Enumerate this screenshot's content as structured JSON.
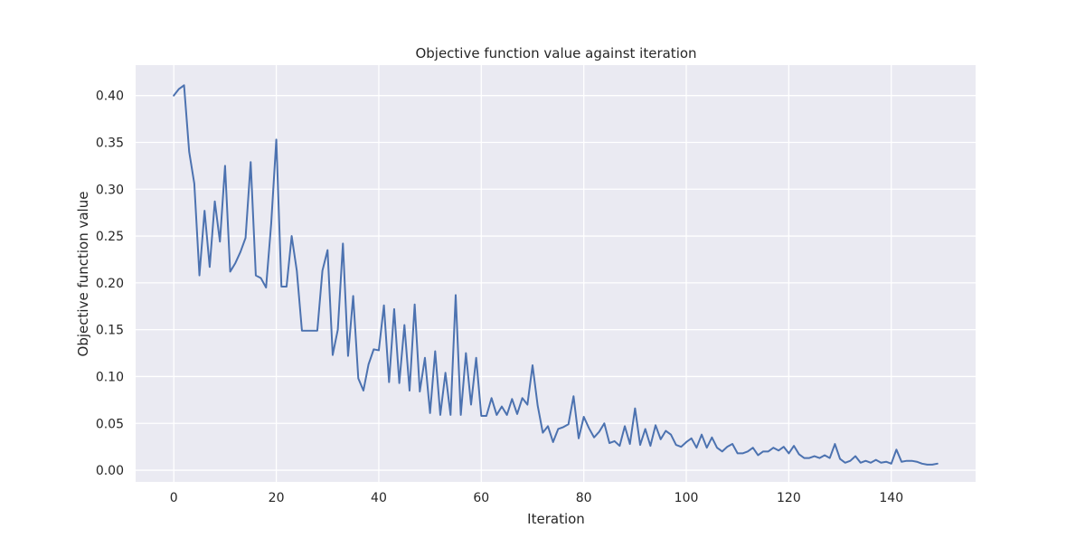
{
  "chart_data": {
    "type": "line",
    "title": "Objective function value against iteration",
    "xlabel": "Iteration",
    "ylabel": "Objective function value",
    "xlim": [
      -7.45,
      156.45
    ],
    "ylim": [
      -0.0125,
      0.4325
    ],
    "xticks": [
      0,
      20,
      40,
      60,
      80,
      100,
      120,
      140
    ],
    "yticks": [
      0.0,
      0.05,
      0.1,
      0.15,
      0.2,
      0.25,
      0.3,
      0.35,
      0.4
    ],
    "ytick_labels": [
      "0.00",
      "0.05",
      "0.10",
      "0.15",
      "0.20",
      "0.25",
      "0.30",
      "0.35",
      "0.40"
    ],
    "grid": true,
    "colors": {
      "line": "#4c72b0",
      "background": "#eaeaf2",
      "grid": "#ffffff"
    },
    "series": [
      {
        "values": [
          0.4,
          0.407,
          0.411,
          0.34,
          0.306,
          0.208,
          0.277,
          0.217,
          0.287,
          0.244,
          0.325,
          0.212,
          0.221,
          0.233,
          0.248,
          0.329,
          0.208,
          0.205,
          0.195,
          0.263,
          0.353,
          0.196,
          0.196,
          0.25,
          0.213,
          0.149,
          0.149,
          0.149,
          0.149,
          0.213,
          0.235,
          0.123,
          0.15,
          0.242,
          0.122,
          0.186,
          0.098,
          0.085,
          0.113,
          0.129,
          0.128,
          0.176,
          0.094,
          0.172,
          0.093,
          0.155,
          0.085,
          0.177,
          0.084,
          0.12,
          0.061,
          0.127,
          0.059,
          0.104,
          0.059,
          0.187,
          0.059,
          0.125,
          0.07,
          0.12,
          0.058,
          0.058,
          0.077,
          0.059,
          0.068,
          0.059,
          0.076,
          0.06,
          0.077,
          0.07,
          0.112,
          0.069,
          0.04,
          0.047,
          0.03,
          0.044,
          0.046,
          0.049,
          0.079,
          0.034,
          0.057,
          0.045,
          0.035,
          0.041,
          0.05,
          0.029,
          0.031,
          0.026,
          0.047,
          0.028,
          0.066,
          0.027,
          0.044,
          0.026,
          0.048,
          0.033,
          0.042,
          0.038,
          0.027,
          0.025,
          0.03,
          0.034,
          0.024,
          0.038,
          0.024,
          0.035,
          0.024,
          0.02,
          0.025,
          0.028,
          0.018,
          0.018,
          0.02,
          0.024,
          0.016,
          0.02,
          0.02,
          0.024,
          0.021,
          0.025,
          0.018,
          0.026,
          0.017,
          0.013,
          0.013,
          0.015,
          0.013,
          0.016,
          0.013,
          0.028,
          0.012,
          0.008,
          0.01,
          0.015,
          0.008,
          0.01,
          0.008,
          0.011,
          0.008,
          0.009,
          0.007,
          0.022,
          0.009,
          0.01,
          0.01,
          0.009,
          0.007,
          0.006,
          0.006,
          0.007
        ]
      }
    ]
  }
}
